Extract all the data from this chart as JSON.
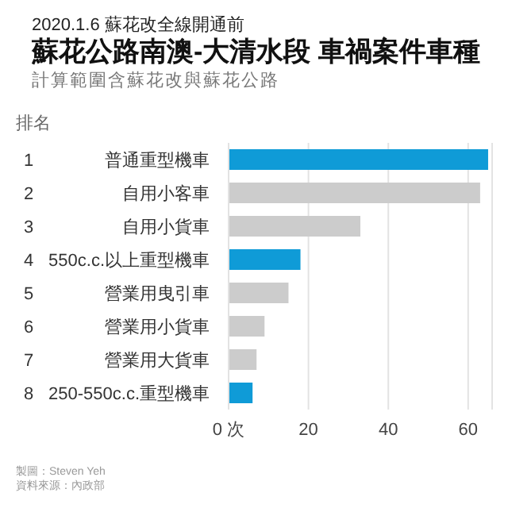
{
  "chart_data": {
    "type": "bar",
    "orientation": "horizontal",
    "title": "蘇花公路南澳-大清水段 車禍案件車種",
    "subtitle": "計算範圍含蘇花改與蘇花公路",
    "ylabel": "排名",
    "categories": [
      "1 普通重型機車",
      "2 自用小客車",
      "3 自用小貨車",
      "4 550c.c.以上重型機車",
      "5 營業用曳引車",
      "6 營業用小貨車",
      "7 營業用大貨車",
      "8 250-550c.c.重型機車"
    ],
    "values": [
      65,
      63,
      33,
      18,
      15,
      9,
      7,
      6
    ],
    "colors": [
      "#0f9bd7",
      "#cccccc",
      "#cccccc",
      "#0f9bd7",
      "#cccccc",
      "#cccccc",
      "#cccccc",
      "#0f9bd7"
    ],
    "xlim": [
      0,
      66
    ],
    "xticks": [
      {
        "value": 0,
        "label": "0 次"
      },
      20,
      40,
      60
    ],
    "grid": "x",
    "annotations": [
      "2020.1.6 蘇花改全線開通前",
      "製圖：Steven Yeh",
      "資料來源：內政部"
    ]
  }
}
